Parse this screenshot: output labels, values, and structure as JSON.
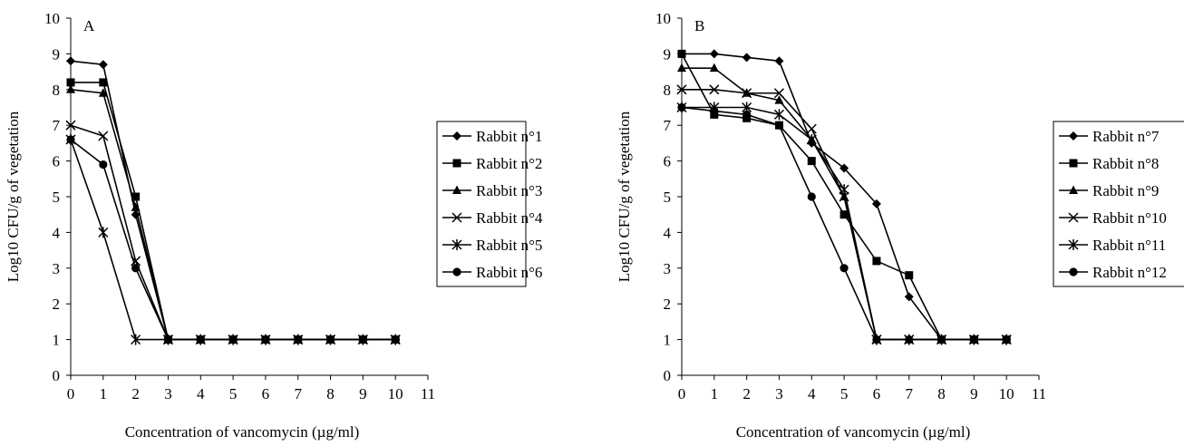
{
  "chart_data": [
    {
      "type": "line",
      "panel_label": "A",
      "xlabel": "Concentration of vancomycin (µg/ml)",
      "ylabel": "Log10 CFU/g of vegetation",
      "xlim": [
        0,
        11
      ],
      "ylim": [
        0,
        10
      ],
      "xticks": [
        "0",
        "1",
        "2",
        "3",
        "4",
        "5",
        "6",
        "7",
        "8",
        "9",
        "10",
        "11"
      ],
      "yticks": [
        "0",
        "1",
        "2",
        "3",
        "4",
        "5",
        "6",
        "7",
        "8",
        "9",
        "10"
      ],
      "grid": false,
      "legend_position": "right",
      "x": [
        0,
        1,
        2,
        3,
        4,
        5,
        6,
        7,
        8,
        9,
        10
      ],
      "series": [
        {
          "name": "Rabbit n°1",
          "marker": "diamond",
          "values": [
            8.8,
            8.7,
            4.5,
            1,
            1,
            1,
            1,
            1,
            1,
            1,
            1
          ]
        },
        {
          "name": "Rabbit n°2",
          "marker": "square",
          "values": [
            8.2,
            8.2,
            5.0,
            1,
            1,
            1,
            1,
            1,
            1,
            1,
            1
          ]
        },
        {
          "name": "Rabbit n°3",
          "marker": "triangle",
          "values": [
            8.0,
            7.9,
            4.7,
            1,
            1,
            1,
            1,
            1,
            1,
            1,
            1
          ]
        },
        {
          "name": "Rabbit n°4",
          "marker": "x",
          "values": [
            7.0,
            6.7,
            3.2,
            1,
            1,
            1,
            1,
            1,
            1,
            1,
            1
          ]
        },
        {
          "name": "Rabbit n°5",
          "marker": "star",
          "values": [
            6.6,
            4.0,
            1.0,
            1,
            1,
            1,
            1,
            1,
            1,
            1,
            1
          ]
        },
        {
          "name": "Rabbit n°6",
          "marker": "circle",
          "values": [
            6.6,
            5.9,
            3.0,
            1,
            1,
            1,
            1,
            1,
            1,
            1,
            1
          ]
        }
      ]
    },
    {
      "type": "line",
      "panel_label": "B",
      "xlabel": "Concentration of vancomycin (µg/ml)",
      "ylabel": "Log10 CFU/g of vegetation",
      "xlim": [
        0,
        11
      ],
      "ylim": [
        0,
        10
      ],
      "xticks": [
        "0",
        "1",
        "2",
        "3",
        "4",
        "5",
        "6",
        "7",
        "8",
        "9",
        "10",
        "11"
      ],
      "yticks": [
        "0",
        "1",
        "2",
        "3",
        "4",
        "5",
        "6",
        "7",
        "8",
        "9",
        "10"
      ],
      "grid": false,
      "legend_position": "right",
      "x": [
        0,
        1,
        2,
        3,
        4,
        5,
        6,
        7,
        8,
        9,
        10
      ],
      "series": [
        {
          "name": "Rabbit n°7",
          "marker": "diamond",
          "values": [
            9.0,
            9.0,
            8.9,
            8.8,
            6.5,
            5.8,
            4.8,
            2.2,
            1,
            1,
            1
          ]
        },
        {
          "name": "Rabbit n°8",
          "marker": "square",
          "values": [
            9.0,
            7.3,
            7.2,
            7.0,
            6.0,
            4.5,
            3.2,
            2.8,
            1,
            1,
            1
          ]
        },
        {
          "name": "Rabbit n°9",
          "marker": "triangle",
          "values": [
            8.6,
            8.6,
            7.9,
            7.7,
            6.6,
            5.0,
            1,
            1,
            1,
            1,
            1
          ]
        },
        {
          "name": "Rabbit n°10",
          "marker": "x",
          "values": [
            8.0,
            8.0,
            7.9,
            7.9,
            6.9,
            5.0,
            1,
            1,
            1,
            1,
            1
          ]
        },
        {
          "name": "Rabbit n°11",
          "marker": "star",
          "values": [
            7.5,
            7.5,
            7.5,
            7.3,
            6.6,
            5.2,
            1,
            1,
            1,
            1,
            1
          ]
        },
        {
          "name": "Rabbit n°12",
          "marker": "circle",
          "values": [
            7.5,
            7.4,
            7.3,
            7.0,
            5.0,
            3.0,
            1,
            1,
            1,
            1,
            1
          ]
        }
      ]
    }
  ]
}
